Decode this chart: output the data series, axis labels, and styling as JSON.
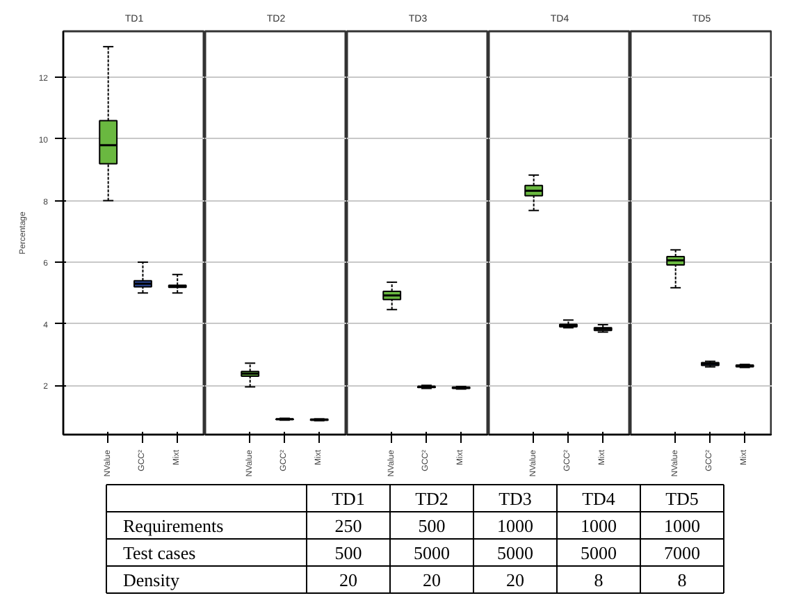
{
  "chart_data": [
    {
      "type": "box",
      "title": "TD1",
      "ylabel": "Percentage",
      "categories": [
        "NValue",
        "GCC²",
        "Mixt"
      ],
      "colors": [
        "#6ab840",
        "#2d4a9c",
        "#ffffff"
      ],
      "ylim": [
        0.4,
        13.5
      ],
      "yticks": [
        2,
        4,
        6,
        8,
        10,
        12
      ],
      "grid": "y",
      "boxes": [
        {
          "low": 8.0,
          "q1": 9.2,
          "median": 9.8,
          "q3": 10.6,
          "high": 13.0
        },
        {
          "low": 5.0,
          "q1": 5.2,
          "median": 5.3,
          "q3": 5.4,
          "high": 6.0
        },
        {
          "low": 5.0,
          "q1": 5.18,
          "median": 5.2,
          "q3": 5.25,
          "high": 5.6
        }
      ]
    },
    {
      "type": "box",
      "title": "TD2",
      "categories": [
        "NValue",
        "GCC²",
        "Mixt"
      ],
      "colors": [
        "#6ab840",
        "#2d4a9c",
        "#ffffff"
      ],
      "ylim": [
        0.4,
        13.5
      ],
      "yticks": [
        2,
        4,
        6,
        8,
        10,
        12
      ],
      "grid": "y",
      "tick_labels": "x",
      "boxes": [
        {
          "low": 1.95,
          "q1": 2.3,
          "median": 2.38,
          "q3": 2.45,
          "high": 2.72
        },
        {
          "low": 0.87,
          "q1": 0.89,
          "median": 0.9,
          "q3": 0.91,
          "high": 0.93
        },
        {
          "low": 0.85,
          "q1": 0.87,
          "median": 0.88,
          "q3": 0.9,
          "high": 0.91
        }
      ]
    },
    {
      "type": "box",
      "title": "TD3",
      "categories": [
        "NValue",
        "GCC²",
        "Mixt"
      ],
      "colors": [
        "#6ab840",
        "#2d4a9c",
        "#ffffff"
      ],
      "ylim": [
        0.4,
        13.5
      ],
      "yticks": [
        2,
        4,
        6,
        8,
        10,
        12
      ],
      "grid": "y",
      "tick_labels": "x",
      "boxes": [
        {
          "low": 4.46,
          "q1": 4.79,
          "median": 4.92,
          "q3": 5.05,
          "high": 5.35
        },
        {
          "low": 1.9,
          "q1": 1.93,
          "median": 1.95,
          "q3": 1.97,
          "high": 2.0
        },
        {
          "low": 1.88,
          "q1": 1.9,
          "median": 1.92,
          "q3": 1.94,
          "high": 1.96
        }
      ]
    },
    {
      "type": "box",
      "title": "TD4",
      "categories": [
        "NValue",
        "GCC²",
        "Mixt"
      ],
      "colors": [
        "#6ab840",
        "#2d4a9c",
        "#ffffff"
      ],
      "ylim": [
        0.4,
        13.5
      ],
      "yticks": [
        2,
        4,
        6,
        8,
        10,
        12
      ],
      "grid": "y",
      "tick_labels": "x",
      "boxes": [
        {
          "low": 7.68,
          "q1": 8.16,
          "median": 8.32,
          "q3": 8.49,
          "high": 8.83
        },
        {
          "low": 3.87,
          "q1": 3.9,
          "median": 3.94,
          "q3": 3.98,
          "high": 4.12
        },
        {
          "low": 3.73,
          "q1": 3.78,
          "median": 3.83,
          "q3": 3.87,
          "high": 3.97
        }
      ]
    },
    {
      "type": "box",
      "title": "TD5",
      "categories": [
        "NValue",
        "GCC²",
        "Mixt"
      ],
      "colors": [
        "#6ab840",
        "#2d4a9c",
        "#ffffff"
      ],
      "ylim": [
        0.4,
        13.5
      ],
      "yticks": [
        2,
        4,
        6,
        8,
        10,
        12
      ],
      "grid": "y",
      "tick_labels": "x",
      "boxes": [
        {
          "low": 5.17,
          "q1": 5.91,
          "median": 6.06,
          "q3": 6.18,
          "high": 6.4
        },
        {
          "low": 2.6,
          "q1": 2.65,
          "median": 2.7,
          "q3": 2.74,
          "high": 2.78
        },
        {
          "low": 2.58,
          "q1": 2.6,
          "median": 2.63,
          "q3": 2.66,
          "high": 2.68
        }
      ]
    },
    {
      "type": "other",
      "categories": [
        null,
        "TD1",
        "TD2",
        "TD3",
        "TD4",
        "TD5"
      ],
      "y_categories": [
        "Requirements",
        "Test cases",
        "Density"
      ],
      "cell_labels": [
        [
          "250",
          "500",
          "1000",
          "1000",
          "1000"
        ],
        [
          "500",
          "5000",
          "5000",
          "5000",
          "7000"
        ],
        [
          "20",
          "20",
          "20",
          "8",
          "8"
        ]
      ]
    }
  ]
}
